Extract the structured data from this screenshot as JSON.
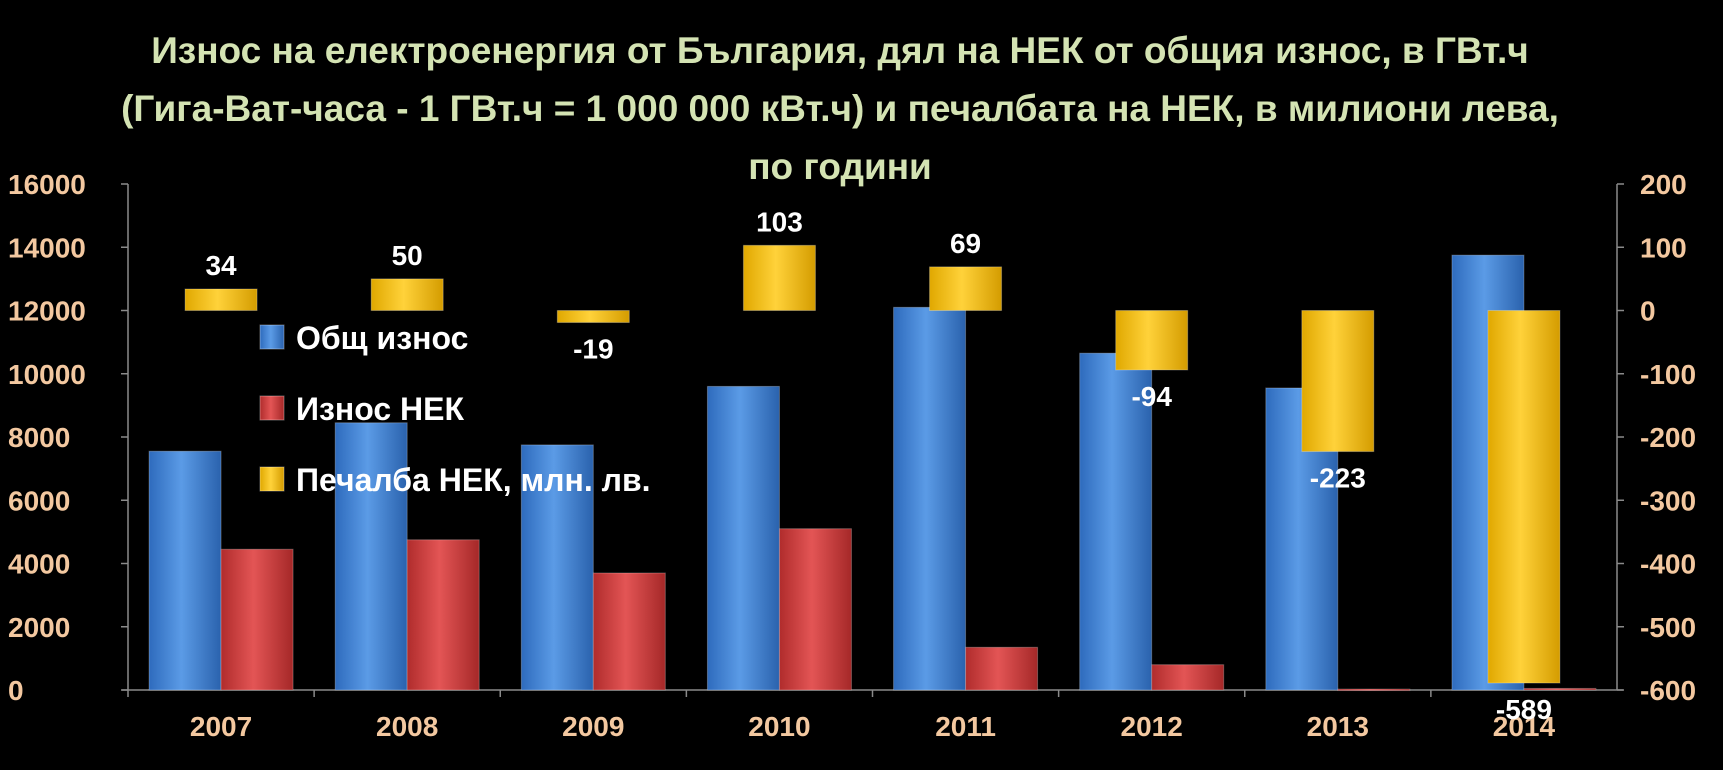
{
  "title": "Износ на електроенергия от България, дял на НЕК от общия износ, в ГВт.ч (Гига-Ват-часа - 1 ГВт.ч = 1 000 000 кВт.ч) и печалбата на НЕК, в милиони лева,  по години",
  "chart_data": {
    "type": "bar",
    "title": "Износ на електроенергия от България, дял на НЕК от общия износ, в ГВт.ч (Гига-Ват-часа - 1 ГВт.ч = 1 000 000 кВт.ч) и печалбата на НЕК, в милиони лева,  по години",
    "categories": [
      "2007",
      "2008",
      "2009",
      "2010",
      "2011",
      "2012",
      "2013",
      "2014"
    ],
    "series": [
      {
        "name": "Общ износ",
        "axis": "left",
        "color": "#4a8ad8",
        "values": [
          7550,
          8450,
          7750,
          9600,
          12100,
          10650,
          9550,
          13750
        ]
      },
      {
        "name": "Износ НЕК",
        "axis": "left",
        "color": "#d84040",
        "values": [
          4450,
          4750,
          3700,
          5100,
          1350,
          800,
          30,
          50
        ]
      },
      {
        "name": "Печалба НЕК, млн. лв.",
        "axis": "right",
        "color": "#ffc000",
        "values": [
          34,
          50,
          -19,
          103,
          69,
          -94,
          -223,
          -589
        ],
        "labels": [
          "34",
          "50",
          "-19",
          "103",
          "69",
          "-94",
          "-223",
          "-589"
        ]
      }
    ],
    "y_left": {
      "ylim": [
        0,
        16000
      ],
      "ticks": [
        "0",
        "2000",
        "4000",
        "6000",
        "8000",
        "10000",
        "12000",
        "14000",
        "16000"
      ]
    },
    "y_right": {
      "ylim": [
        -600,
        200
      ],
      "ticks": [
        "-600",
        "-500",
        "-400",
        "-300",
        "-200",
        "-100",
        "0",
        "100",
        "200"
      ]
    },
    "legend": {
      "placement": "left-inside",
      "entries": [
        "Общ износ",
        "Износ НЕК",
        "Печалба НЕК, млн. лв."
      ]
    },
    "grid": false,
    "colors": {
      "background": "#000000",
      "title": "#d4e3b3",
      "ticks": "#f3c8a0",
      "labels": "#ffffff"
    }
  }
}
